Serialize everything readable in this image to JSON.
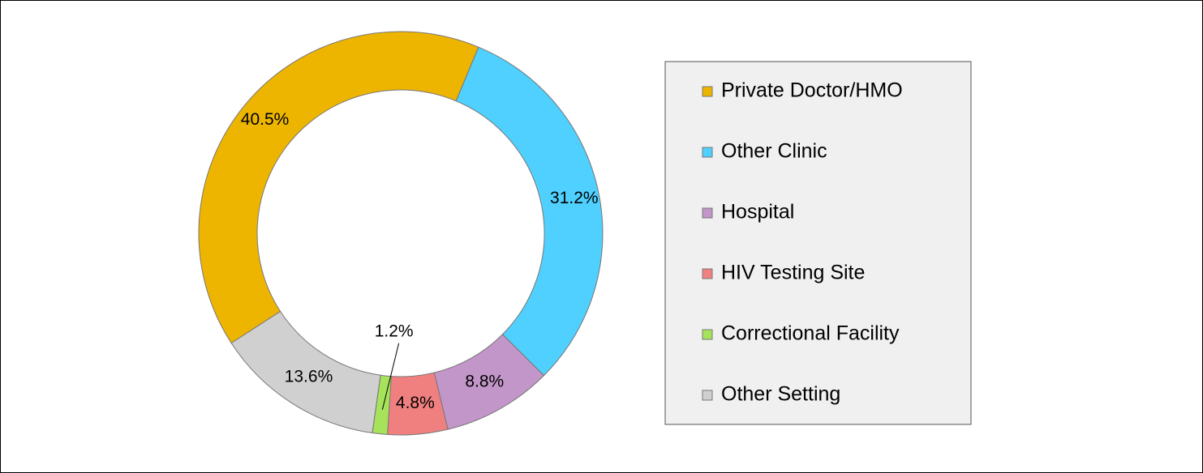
{
  "chart_data": {
    "type": "donut",
    "categories": [
      "Private Doctor/HMO",
      "Other Clinic",
      "Hospital",
      "HIV Testing Site",
      "Correctional Facility",
      "Other Setting"
    ],
    "values": [
      40.5,
      31.2,
      8.8,
      4.8,
      1.2,
      13.6
    ],
    "value_labels": [
      "40.5%",
      "31.2%",
      "8.8%",
      "4.8%",
      "1.2%",
      "13.6%"
    ],
    "colors": [
      "#EEB500",
      "#4FD0FF",
      "#C296C8",
      "#F08080",
      "#A6E35A",
      "#D0D0D0"
    ],
    "legend": "right"
  }
}
